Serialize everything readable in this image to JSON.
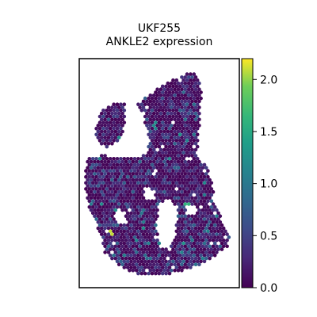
{
  "chart_data": {
    "type": "heatmap",
    "title_lines": [
      "UKF255",
      "ANKLE2 expression"
    ],
    "xlabel": "",
    "ylabel": "",
    "grid": false,
    "colorbar": {
      "colormap": "viridis",
      "range": [
        0.0,
        2.2
      ],
      "ticks": [
        0.0,
        0.5,
        1.0,
        1.5,
        2.0
      ],
      "tick_labels": [
        "0.0",
        "0.5",
        "1.0",
        "1.5",
        "2.0"
      ]
    },
    "spatial_spots_note": "hexagonal spot grid; values mostly near 0 with scattered higher spots",
    "highlight_values": [
      {
        "region": "lower-left",
        "value": 2.1
      },
      {
        "region": "upper-middle",
        "value": 1.2
      },
      {
        "region": "center-right",
        "value": 1.6
      },
      {
        "region": "center",
        "value": 1.0
      },
      {
        "region": "lower-center",
        "value": 0.9
      }
    ]
  },
  "colors": {
    "viridis_low": "#440154",
    "viridis_mid": "#21918c",
    "viridis_high": "#fde725",
    "axis": "#000000",
    "background": "#ffffff"
  }
}
